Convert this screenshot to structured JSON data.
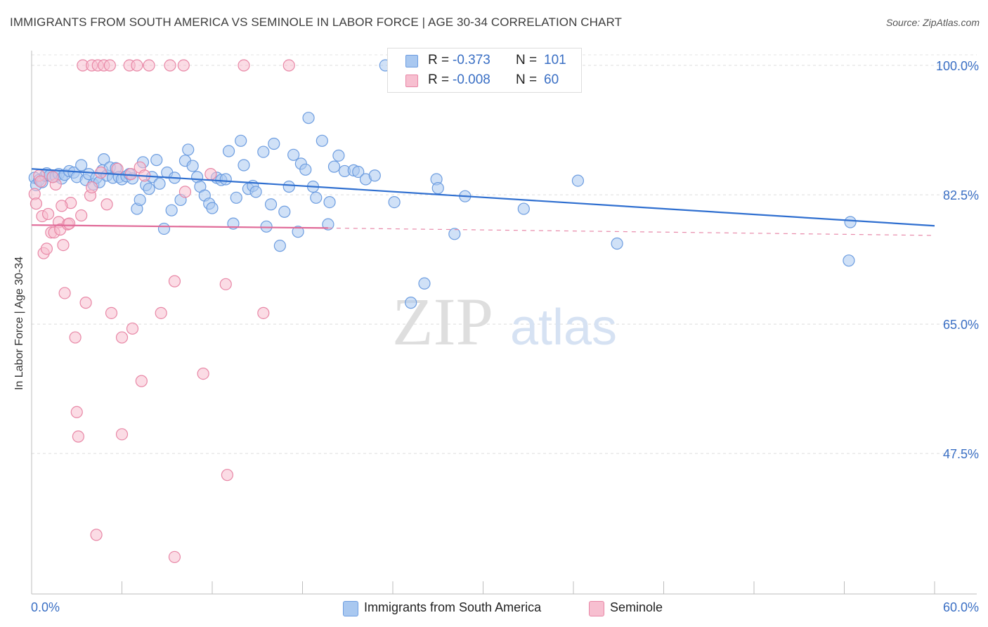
{
  "title": "IMMIGRANTS FROM SOUTH AMERICA VS SEMINOLE IN LABOR FORCE | AGE 30-34 CORRELATION CHART",
  "source": "Source: ZipAtlas.com",
  "watermark": {
    "zip": "ZIP",
    "atlas": "atlas"
  },
  "legend": {
    "rows": [
      {
        "r_label": "R =",
        "r_value": "-0.373",
        "n_label": "N =",
        "n_value": "101",
        "color": "#a9c8f0",
        "stroke": "#6d9de0"
      },
      {
        "r_label": "R =",
        "r_value": "-0.008",
        "n_label": "N =",
        "n_value": "60",
        "color": "#f7bfd0",
        "stroke": "#e887a6"
      }
    ]
  },
  "bottom_legend": [
    {
      "label": "Immigrants from South America",
      "color": "#a9c8f0",
      "stroke": "#6d9de0"
    },
    {
      "label": "Seminole",
      "color": "#f7bfd0",
      "stroke": "#e887a6"
    }
  ],
  "chart_data": {
    "type": "scatter",
    "title": "IMMIGRANTS FROM SOUTH AMERICA VS SEMINOLE IN LABOR FORCE | AGE 30-34 CORRELATION CHART",
    "xlabel": "",
    "ylabel": "In Labor Force | Age 30-34",
    "xlim": [
      0,
      60
    ],
    "ylim": [
      28.5,
      102
    ],
    "x_tick_labels": [
      "0.0%",
      "60.0%"
    ],
    "y_ticks": [
      47.5,
      65.0,
      82.5,
      100.0
    ],
    "y_tick_labels": [
      "47.5%",
      "65.0%",
      "82.5%",
      "100.0%"
    ],
    "grid": true,
    "legend_position": "top-center",
    "series": [
      {
        "name": "Immigrants from South America",
        "color": "#6d9de0",
        "fill": "#a9c8f0",
        "trend": {
          "x": [
            0,
            60
          ],
          "y": [
            86.0,
            78.3
          ],
          "style": "solid"
        },
        "points": [
          [
            0.2,
            84.8
          ],
          [
            0.3,
            83.8
          ],
          [
            0.5,
            84.5
          ],
          [
            0.7,
            84.2
          ],
          [
            0.9,
            85.1
          ],
          [
            1.0,
            85.4
          ],
          [
            1.2,
            85.1
          ],
          [
            1.4,
            84.9
          ],
          [
            1.6,
            85.0
          ],
          [
            1.8,
            85.3
          ],
          [
            2.0,
            84.7
          ],
          [
            2.2,
            85.2
          ],
          [
            2.5,
            85.7
          ],
          [
            2.8,
            85.5
          ],
          [
            3.0,
            84.9
          ],
          [
            3.3,
            86.5
          ],
          [
            3.6,
            84.5
          ],
          [
            3.8,
            85.3
          ],
          [
            4.1,
            83.9
          ],
          [
            4.3,
            84.8
          ],
          [
            4.5,
            84.2
          ],
          [
            4.7,
            85.8
          ],
          [
            4.8,
            87.3
          ],
          [
            5.0,
            85.1
          ],
          [
            5.2,
            86.2
          ],
          [
            5.4,
            84.8
          ],
          [
            5.6,
            86.1
          ],
          [
            5.8,
            84.9
          ],
          [
            6.0,
            84.6
          ],
          [
            6.3,
            85.0
          ],
          [
            6.5,
            85.3
          ],
          [
            6.7,
            84.7
          ],
          [
            7.0,
            80.6
          ],
          [
            7.2,
            81.8
          ],
          [
            7.4,
            86.9
          ],
          [
            7.6,
            83.8
          ],
          [
            7.8,
            83.3
          ],
          [
            8.0,
            84.9
          ],
          [
            8.3,
            87.2
          ],
          [
            8.5,
            84.0
          ],
          [
            8.8,
            77.9
          ],
          [
            9.0,
            85.5
          ],
          [
            9.3,
            80.4
          ],
          [
            9.5,
            84.8
          ],
          [
            9.9,
            81.8
          ],
          [
            10.2,
            87.1
          ],
          [
            10.4,
            88.6
          ],
          [
            10.7,
            86.4
          ],
          [
            11.0,
            84.9
          ],
          [
            11.2,
            83.6
          ],
          [
            11.5,
            82.4
          ],
          [
            11.8,
            81.3
          ],
          [
            12.0,
            80.7
          ],
          [
            12.3,
            84.8
          ],
          [
            12.6,
            84.5
          ],
          [
            12.9,
            84.6
          ],
          [
            13.1,
            88.4
          ],
          [
            13.4,
            78.6
          ],
          [
            13.6,
            82.1
          ],
          [
            13.9,
            89.8
          ],
          [
            14.1,
            86.5
          ],
          [
            14.4,
            83.3
          ],
          [
            14.7,
            83.7
          ],
          [
            14.9,
            82.9
          ],
          [
            15.4,
            88.3
          ],
          [
            15.6,
            78.2
          ],
          [
            15.9,
            81.2
          ],
          [
            16.1,
            89.4
          ],
          [
            16.5,
            75.6
          ],
          [
            16.8,
            80.2
          ],
          [
            17.1,
            83.6
          ],
          [
            17.4,
            87.9
          ],
          [
            17.7,
            77.5
          ],
          [
            17.9,
            86.7
          ],
          [
            18.2,
            85.9
          ],
          [
            18.4,
            92.9
          ],
          [
            18.7,
            83.6
          ],
          [
            18.9,
            82.1
          ],
          [
            19.3,
            89.8
          ],
          [
            19.8,
            81.5
          ],
          [
            19.7,
            78.5
          ],
          [
            20.1,
            86.3
          ],
          [
            20.4,
            87.8
          ],
          [
            20.8,
            85.7
          ],
          [
            21.4,
            85.8
          ],
          [
            21.7,
            85.6
          ],
          [
            22.2,
            84.6
          ],
          [
            22.8,
            85.1
          ],
          [
            24.1,
            81.5
          ],
          [
            25.2,
            67.9
          ],
          [
            26.1,
            70.5
          ],
          [
            26.9,
            84.6
          ],
          [
            27.0,
            83.4
          ],
          [
            28.1,
            77.2
          ],
          [
            28.8,
            82.3
          ],
          [
            32.7,
            80.6
          ],
          [
            36.3,
            84.4
          ],
          [
            38.9,
            75.9
          ],
          [
            54.4,
            78.8
          ],
          [
            54.3,
            73.6
          ],
          [
            23.5,
            100.0
          ]
        ]
      },
      {
        "name": "Seminole",
        "color": "#e887a6",
        "fill": "#f7bfd0",
        "trend": {
          "x": [
            0,
            19.7
          ],
          "y": [
            78.4,
            78.0
          ],
          "style": "solid",
          "dashed_to": [
            60,
            77.0
          ]
        },
        "points": [
          [
            0.2,
            82.6
          ],
          [
            0.3,
            81.3
          ],
          [
            0.5,
            85.1
          ],
          [
            0.6,
            84.3
          ],
          [
            0.7,
            79.6
          ],
          [
            0.8,
            74.6
          ],
          [
            1.0,
            75.2
          ],
          [
            1.1,
            79.9
          ],
          [
            1.3,
            77.4
          ],
          [
            1.5,
            77.4
          ],
          [
            1.6,
            83.9
          ],
          [
            1.8,
            78.8
          ],
          [
            1.9,
            77.8
          ],
          [
            2.1,
            75.7
          ],
          [
            2.2,
            69.2
          ],
          [
            2.4,
            78.5
          ],
          [
            2.6,
            81.4
          ],
          [
            2.9,
            63.2
          ],
          [
            3.0,
            53.1
          ],
          [
            3.1,
            49.8
          ],
          [
            3.3,
            79.7
          ],
          [
            3.6,
            67.9
          ],
          [
            3.9,
            82.4
          ],
          [
            4.3,
            36.5
          ],
          [
            4.6,
            85.5
          ],
          [
            5.0,
            81.2
          ],
          [
            5.3,
            66.5
          ],
          [
            6.0,
            63.2
          ],
          [
            6.0,
            50.1
          ],
          [
            6.7,
            64.4
          ],
          [
            6.6,
            85.3
          ],
          [
            7.2,
            86.2
          ],
          [
            7.3,
            57.3
          ],
          [
            7.5,
            85.1
          ],
          [
            8.6,
            66.5
          ],
          [
            11.4,
            58.3
          ],
          [
            11.9,
            85.3
          ],
          [
            13.0,
            44.6
          ],
          [
            10.2,
            82.9
          ],
          [
            12.9,
            70.4
          ],
          [
            9.5,
            70.8
          ],
          [
            9.5,
            33.5
          ],
          [
            15.4,
            66.5
          ],
          [
            3.4,
            100.0
          ],
          [
            4.0,
            100.0
          ],
          [
            4.4,
            100.0
          ],
          [
            4.8,
            100.0
          ],
          [
            5.2,
            100.0
          ],
          [
            6.5,
            100.0
          ],
          [
            7.0,
            100.0
          ],
          [
            7.8,
            100.0
          ],
          [
            9.2,
            100.0
          ],
          [
            10.1,
            100.0
          ],
          [
            14.1,
            100.0
          ],
          [
            17.1,
            100.0
          ],
          [
            2.5,
            78.6
          ],
          [
            1.4,
            84.9
          ],
          [
            4.0,
            83.5
          ],
          [
            2.0,
            81.0
          ],
          [
            5.7,
            86.0
          ]
        ]
      }
    ]
  }
}
